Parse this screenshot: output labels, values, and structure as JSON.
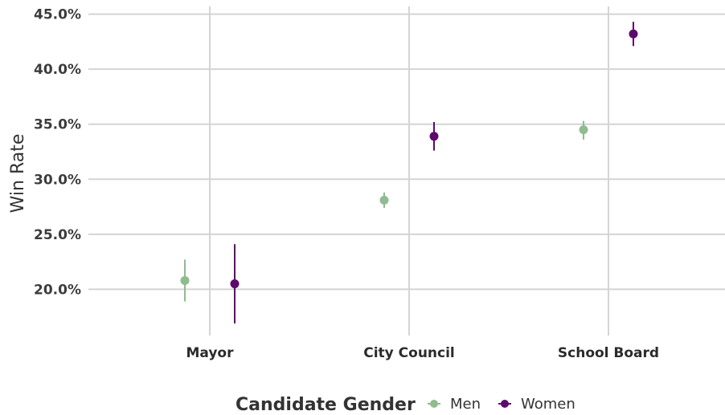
{
  "chart_data": {
    "type": "scatter",
    "subtype": "dot-with-error-bars",
    "title": "",
    "xlabel": "",
    "ylabel": "Win Rate",
    "categories": [
      "Mayor",
      "City Council",
      "School Board"
    ],
    "y_ticks": [
      "20.0%",
      "25.0%",
      "30.0%",
      "35.0%",
      "40.0%",
      "45.0%"
    ],
    "y_tick_values": [
      20,
      25,
      30,
      35,
      40,
      45
    ],
    "ylim": [
      15.8,
      45.7
    ],
    "grid": true,
    "legend": {
      "title": "Candidate Gender",
      "position": "bottom",
      "entries": [
        "Men",
        "Women"
      ]
    },
    "series": [
      {
        "name": "Men",
        "color": "#8fbc8f",
        "values": [
          20.8,
          28.1,
          34.5
        ],
        "lower": [
          18.9,
          27.4,
          33.6
        ],
        "upper": [
          22.7,
          28.8,
          35.3
        ]
      },
      {
        "name": "Women",
        "color": "#5c0a6b",
        "values": [
          20.5,
          33.9,
          43.2
        ],
        "lower": [
          16.9,
          32.6,
          42.1
        ],
        "upper": [
          24.1,
          35.2,
          44.3
        ]
      }
    ]
  }
}
